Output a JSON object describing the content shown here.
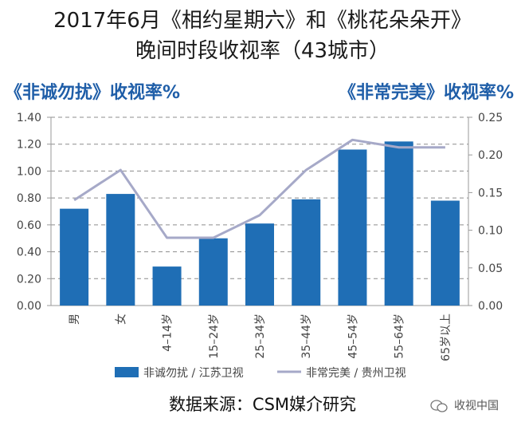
{
  "header": {
    "title_line1": "2017年6月《相约星期六》和《桃花朵朵开》",
    "title_line2": "晚间时段收视率（43城市）"
  },
  "chart_data": {
    "type": "bar",
    "title": "2017年6月《相约星期六》和《桃花朵朵开》晚间时段收视率（43城市）",
    "categories": [
      "男",
      "女",
      "4–14岁",
      "15–24岁",
      "25–34岁",
      "35–44岁",
      "45–54岁",
      "55–64岁",
      "65岁以上"
    ],
    "ylabel_left": "《非诚勿扰》收视率%",
    "ylabel_right": "《非常完美》收视率%",
    "ylim_left": [
      0,
      1.4
    ],
    "ylim_right": [
      0,
      0.25
    ],
    "yticks_left": [
      "0.00",
      "0.20",
      "0.40",
      "0.60",
      "0.80",
      "1.00",
      "1.20",
      "1.40"
    ],
    "yticks_right": [
      "0.00",
      "0.05",
      "0.10",
      "0.15",
      "0.20",
      "0.25"
    ],
    "grid": true,
    "legend_position": "bottom",
    "series": [
      {
        "name": "非诚勿扰 / 江苏卫视",
        "type": "bar",
        "axis": "left",
        "color": "#1f6eb5",
        "values": [
          0.72,
          0.83,
          0.29,
          0.5,
          0.61,
          0.79,
          1.16,
          1.22,
          0.78
        ]
      },
      {
        "name": "非常完美 / 贵州卫视",
        "type": "line",
        "axis": "right",
        "color": "#a6a9c8",
        "values": [
          0.14,
          0.18,
          0.09,
          0.09,
          0.12,
          0.18,
          0.22,
          0.21,
          0.21
        ]
      }
    ]
  },
  "footer": {
    "source": "数据来源：CSM媒介研究",
    "watermark": "收视中国"
  }
}
